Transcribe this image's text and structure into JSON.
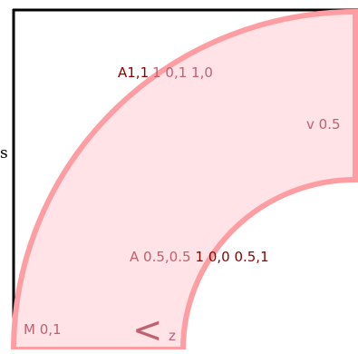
{
  "labels": {
    "side_label": "s",
    "arc_outer": {
      "dark": "A1,1",
      "light": "1 0,1 1,0"
    },
    "line_v": "v 0.5",
    "arc_inner": {
      "light": "A 0.5,0.5",
      "dark": "1 0,0 0.5,1"
    },
    "move_to": "M 0,1",
    "close_path": "z",
    "close_arrow": "<"
  },
  "colors": {
    "frame": "#000000",
    "shape_fill": "#ffe3e6",
    "shape_stroke": "#ff9ea2",
    "text_dark": "#8b0000",
    "text_light": "#c06070"
  }
}
